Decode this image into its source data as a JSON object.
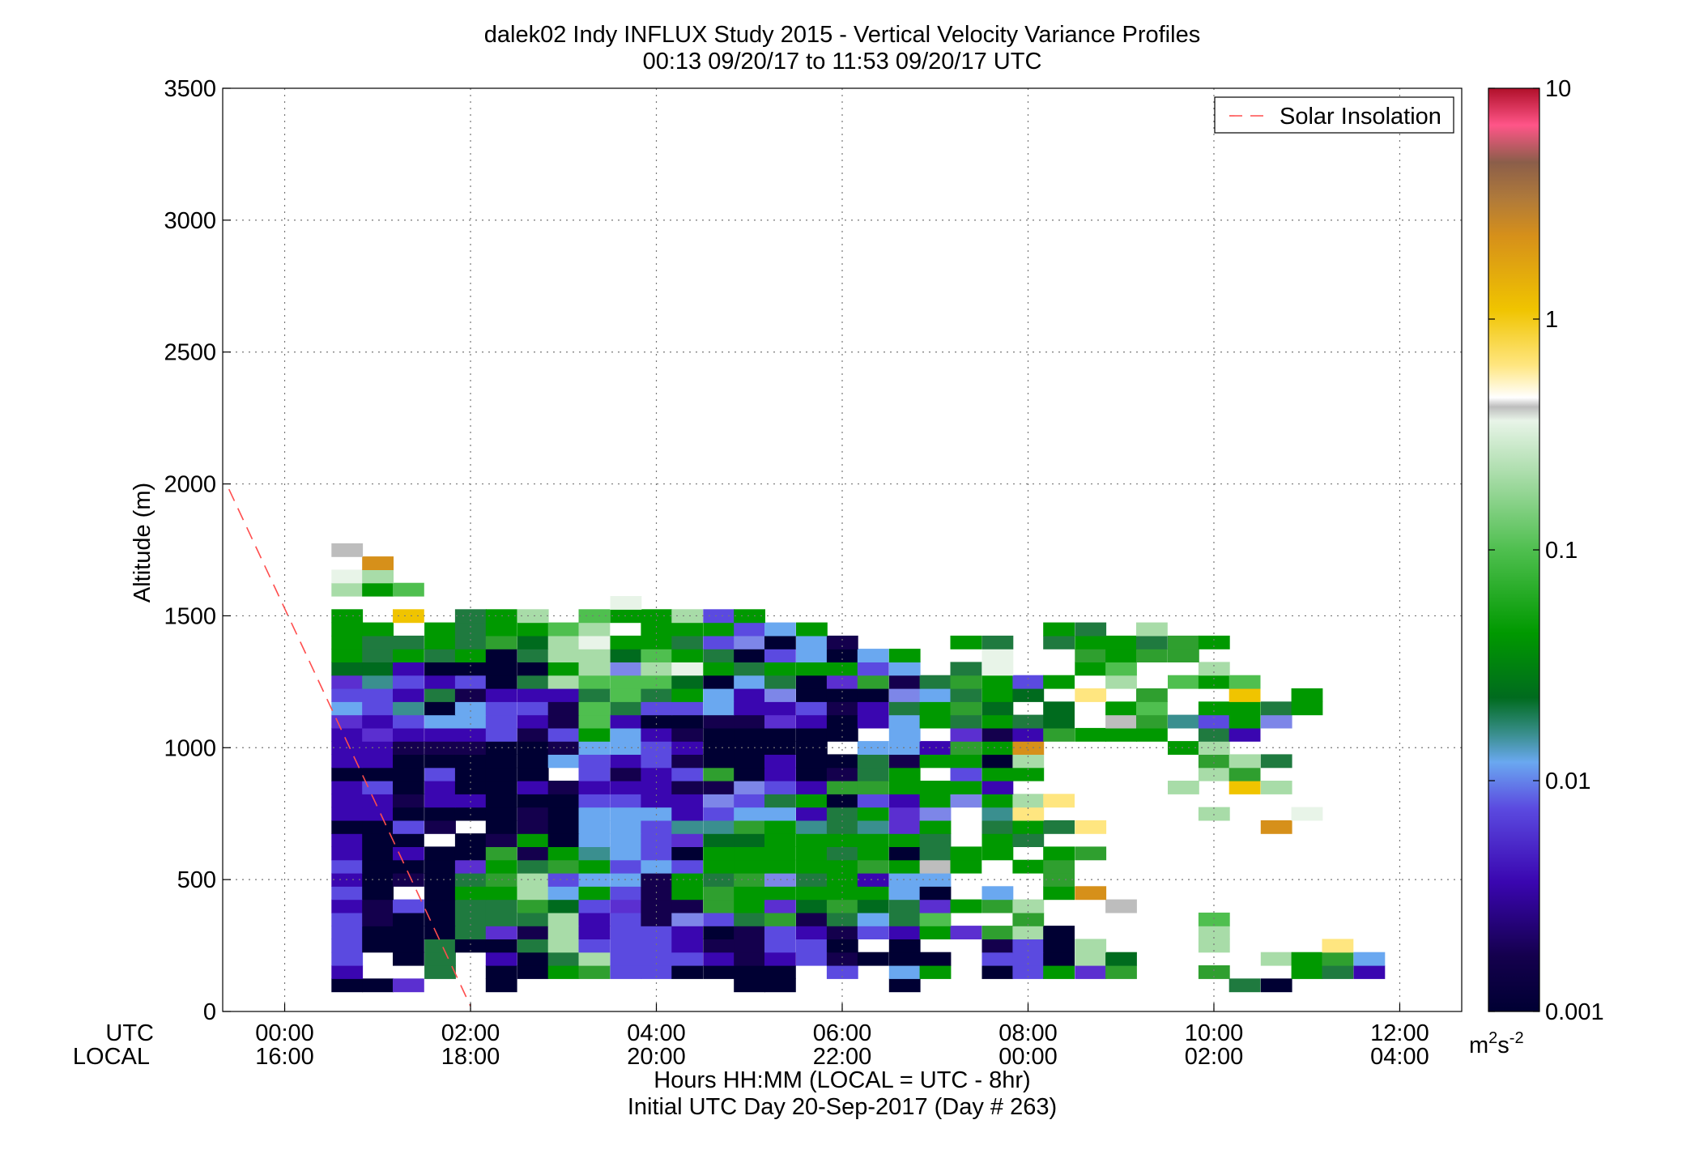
{
  "chart_data": {
    "type": "heatmap",
    "title": "dalek02 Indy INFLUX Study 2015 - Vertical Velocity Variance Profiles",
    "subtitle": "00:13 09/20/17 to 11:53 09/20/17  UTC",
    "ylabel": "Altitude (m)",
    "xlabel": "Hours HH:MM  (LOCAL = UTC - 8hr)",
    "xlabel2": "Initial UTC Day 20-Sep-2017 (Day # 263)",
    "x_row_label_utc": "UTC",
    "x_row_label_local": "LOCAL",
    "xlim": [
      -0.667,
      12.667
    ],
    "ylim": [
      0,
      3500
    ],
    "grid": true,
    "legend_position": "top-right",
    "legend": [
      {
        "name": "Solar Insolation",
        "color": "#ff4d4d",
        "style": "dashed"
      }
    ],
    "x_ticks": [
      {
        "x": 0,
        "utc": "00:00",
        "local": "16:00"
      },
      {
        "x": 2,
        "utc": "02:00",
        "local": "18:00"
      },
      {
        "x": 4,
        "utc": "04:00",
        "local": "20:00"
      },
      {
        "x": 6,
        "utc": "06:00",
        "local": "22:00"
      },
      {
        "x": 8,
        "utc": "08:00",
        "local": "00:00"
      },
      {
        "x": 10,
        "utc": "10:00",
        "local": "02:00"
      },
      {
        "x": 12,
        "utc": "12:00",
        "local": "04:00"
      }
    ],
    "y_ticks": [
      {
        "v": 0,
        "label": "0"
      },
      {
        "v": 500,
        "label": "500"
      },
      {
        "v": 1000,
        "label": "1000"
      },
      {
        "v": 1500,
        "label": "1500"
      },
      {
        "v": 2000,
        "label": "2000"
      },
      {
        "v": 2500,
        "label": "2500"
      },
      {
        "v": 3000,
        "label": "3000"
      },
      {
        "v": 3500,
        "label": "3500"
      }
    ],
    "solar_line": [
      [
        -0.6,
        1980
      ],
      [
        2.0,
        20
      ]
    ],
    "colorbar": {
      "unit_label": "m",
      "unit_sup1": "2",
      "unit_mid": "s",
      "unit_sup2": "-2",
      "log_range": [
        0.001,
        10
      ],
      "ticks": [
        {
          "v": 0.001,
          "label": "0.001"
        },
        {
          "v": 0.01,
          "label": "0.01"
        },
        {
          "v": 0.1,
          "label": "0.1"
        },
        {
          "v": 1,
          "label": "1"
        },
        {
          "v": 10,
          "label": "10"
        }
      ],
      "stops": [
        [
          0.0,
          "#000033"
        ],
        [
          0.06,
          "#14004d"
        ],
        [
          0.14,
          "#3a06b0"
        ],
        [
          0.22,
          "#5b4ae0"
        ],
        [
          0.27,
          "#6aa8f0"
        ],
        [
          0.3,
          "#3a8f8f"
        ],
        [
          0.34,
          "#006b1e"
        ],
        [
          0.41,
          "#009900"
        ],
        [
          0.5,
          "#4fbf4f"
        ],
        [
          0.58,
          "#a8dca8"
        ],
        [
          0.64,
          "#e8f4e8"
        ],
        [
          0.655,
          "#bdbdbd"
        ],
        [
          0.665,
          "#ffffff"
        ],
        [
          0.7,
          "#ffe680"
        ],
        [
          0.76,
          "#f0c400"
        ],
        [
          0.84,
          "#d6901a"
        ],
        [
          0.88,
          "#b07a3a"
        ],
        [
          0.92,
          "#8b5e4a"
        ],
        [
          0.96,
          "#ff5588"
        ],
        [
          1.0,
          "#b0102a"
        ]
      ]
    },
    "cell_x_width_hours": 0.333,
    "cell_y_height_m": 50,
    "y_step_m": 50,
    "y0_m": 100,
    "x_times": [
      0.33,
      0.67,
      1.0,
      1.33,
      1.67,
      2.0,
      2.33,
      2.67,
      3.0,
      3.33,
      3.67,
      4.0,
      4.33,
      4.67,
      5.0,
      5.33,
      5.67,
      6.0,
      6.33,
      6.67,
      7.0,
      7.33,
      7.67,
      8.0,
      8.33,
      8.67,
      9.0,
      9.33,
      9.67,
      10.0,
      10.33,
      10.67,
      11.0,
      11.33,
      11.67
    ],
    "palette": {
      "a": "#000033",
      "b": "#14004d",
      "c": "#3a06b0",
      "d": "#5b4ae0",
      "e": "#6aa8f0",
      "f": "#3a8f8f",
      "g": "#006b1e",
      "h": "#009900",
      "i": "#4fbf4f",
      "j": "#a8dca8",
      "k": "#e8f4e8",
      "l": "#bdbdbd",
      "m": "#f0c400",
      "n": "#d6901a",
      "o": "#ffe680",
      "p": "#2f9f2f",
      "q": "#1f7a3f",
      "r": "#5b2fd0",
      "s": "#7d86e8"
    },
    "grid_rows": [
      ".aar..a.......aa...a..........qa.",
      ".c..q.aahpddaaaa.d.eh.adhrp..p..hqcb",
      ".d.aq.caqjdddcbcdbaaa.ddajg....jhpe.",
      ".daaqaaqjdddcbbdda.a..bdaj...j...o.",
      ".daaaqrbjcddcabdcbdchrpja....j.....",
      ".dbaaqqqjcdbsdqpbqeqi..p.....i.....",
      ".cbdaqqpgdrbbphrgpgqrhpj..l.......",
      ".da.ahhjehdbhphhhhhea.e.hn.......",
      ".cabaqpjdeebhqpsqhcee...p.....",
      ".daaarhqphdedhhhhhphlh.hp.......",
      ".cacaapbhfedahhhhqhaqhh.hp....",
      ".caa.abhaeedrgghhhhhq.hq........",
      ".aadb.abaeedffphfqfrh.qhqo.....n.",
      ".ccaaaabaeeecdeecqhrs.fo.....j..k",
      ".ccbccaaaddccsdqhadchshjo.......",
      ".cdacaacbcccbbsdcpphhhc.....j.mj.",
      ".aaadaaa.dbcdpacabqh.dhh.....jp.",
      ".ccaaaaaedcdbaacaaqbhhaj.....pjq",
      ".ccbbbaabeedcaaaa.eecphn....hj..",
      ".crcccdbdhecbaaaaa.e.rbcphhh.qc.",
      ".rcdeedcbicaabbrcacehqhqg.lpfdhs.",
      ".edfaeddbiqddeccdbcqhpg.g.hi.hhqh",
      ".ddcqbcccqiqhecsaaaseqhg.o.p..m.h",
      ".rfdcdaqjiiigaeqarpbqphdh.j.ihi.",
      ".ggcaaaahjsjkhqhhhde.qk..hi..j..",
      ".hqhqhaqjjgihqadeaeh..k..phpp..",
      ".hqqhqpgjkhhqdsaeb...hq.qhhqph.",
      ".hh.hqhhij.hhhdeh.......hq.j..",
      ".h.m.qhj.ihhjdh...",
      "..........k",
      ".jhi.",
      ".kj.",
      "..n.",
      ".l."
    ],
    "grid_row_altitudes": [
      100,
      150,
      200,
      250,
      300,
      350,
      400,
      450,
      500,
      550,
      600,
      650,
      700,
      750,
      800,
      850,
      900,
      950,
      1000,
      1050,
      1100,
      1150,
      1200,
      1250,
      1300,
      1350,
      1400,
      1450,
      1500,
      1550,
      1600,
      1650,
      1700,
      1750
    ]
  }
}
